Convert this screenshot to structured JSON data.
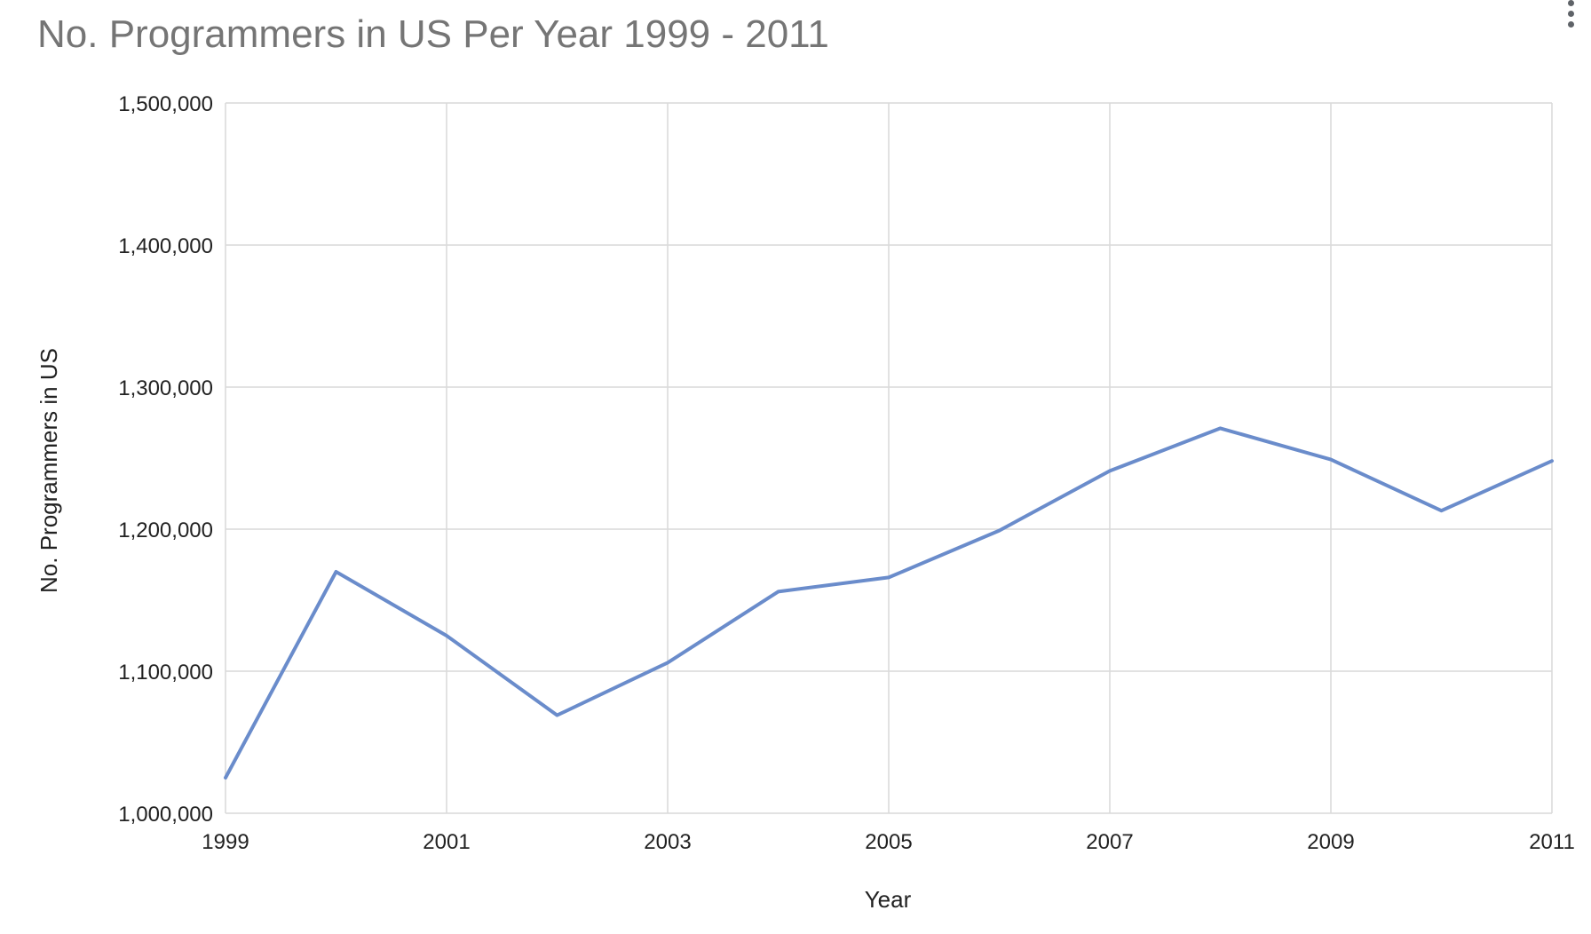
{
  "menu": {
    "icon": "more-vert-icon"
  },
  "chart_data": {
    "type": "line",
    "title": "No. Programmers in US Per Year 1999 - 2011",
    "xlabel": "Year",
    "ylabel": "No. Programmers in US",
    "x": [
      1999,
      2000,
      2001,
      2002,
      2003,
      2004,
      2005,
      2006,
      2007,
      2008,
      2009,
      2010,
      2011
    ],
    "series": [
      {
        "values": [
          1025000,
          1170000,
          1125000,
          1069000,
          1106000,
          1156000,
          1166000,
          1199000,
          1241000,
          1271000,
          1249000,
          1213000,
          1248000
        ],
        "color": "#6a8ccb"
      }
    ],
    "xlim": [
      1999,
      2011
    ],
    "ylim": [
      1000000,
      1500000
    ],
    "x_ticks": [
      "1999",
      "2001",
      "2003",
      "2005",
      "2007",
      "2009",
      "2011"
    ],
    "y_ticks": [
      "1,000,000",
      "1,100,000",
      "1,200,000",
      "1,300,000",
      "1,400,000",
      "1,500,000"
    ],
    "grid": true,
    "grid_color": "#d9d9d9",
    "title_color": "#757575",
    "label_color": "#222222",
    "legend": "none"
  }
}
